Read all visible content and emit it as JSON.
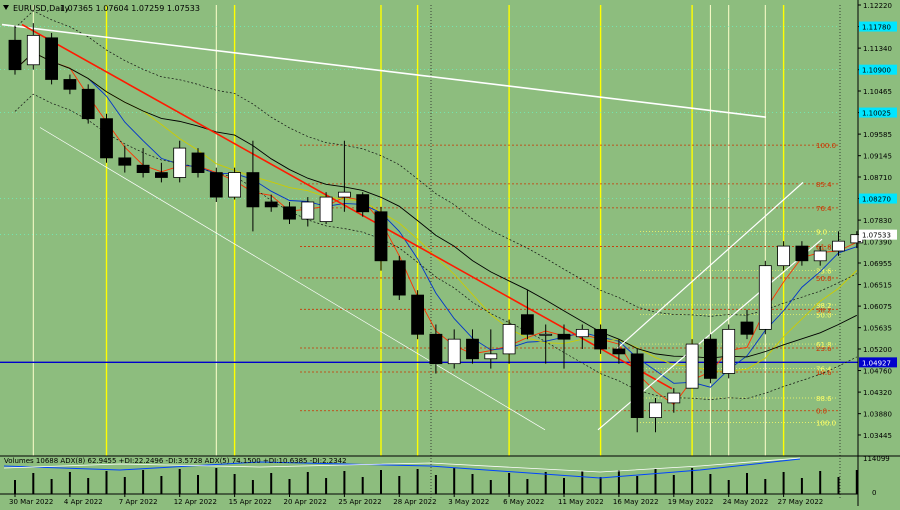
{
  "header": {
    "symbol_label": "EURUSD,Daily",
    "ohlc": "1.07365 1.07604 1.07259 1.07533"
  },
  "indicator_header": "Volumes 10688  ADX(8) 62.9455 +DI:22.2496 -DI:3.5728  ADX(5) 74.1500 +DI:10.6385 -DI:2.2342",
  "colors": {
    "background": "#8dbd7e",
    "bull_candle": "#ffffff",
    "bear_candle": "#000000",
    "trend_down": "#ff1a00",
    "channel": "#ffffff",
    "support": "#0000cc",
    "vertical_marker": "#ffff00",
    "fib": "#cc3300",
    "price_tag": "#00e5ff"
  },
  "chart_data": {
    "type": "candlestick",
    "title": "EURUSD,Daily",
    "ylim": [
      1.0322,
      1.1222
    ],
    "y_ticks": [
      "1.12220",
      "1.11780",
      "1.11340",
      "1.10900",
      "1.10465",
      "1.10025",
      "1.09585",
      "1.09145",
      "1.08710",
      "1.08270",
      "1.07830",
      "1.07390",
      "1.06955",
      "1.06515",
      "1.06075",
      "1.05635",
      "1.05200",
      "1.04760",
      "1.04320",
      "1.03880",
      "1.03445"
    ],
    "highlighted_prices": [
      {
        "label": "1.11780",
        "value": 1.1178
      },
      {
        "label": "1.10900",
        "value": 1.109
      },
      {
        "label": "1.10025",
        "value": 1.10025
      },
      {
        "label": "1.08270",
        "value": 1.0827
      },
      {
        "label": "1.07533",
        "value": 1.07533
      },
      {
        "label": "1.04927",
        "value": 1.04927
      }
    ],
    "x_labels": [
      {
        "label": "30 Mar 2022",
        "index": 0
      },
      {
        "label": "4 Apr 2022",
        "index": 3
      },
      {
        "label": "7 Apr 2022",
        "index": 6
      },
      {
        "label": "12 Apr 2022",
        "index": 9
      },
      {
        "label": "15 Apr 2022",
        "index": 12
      },
      {
        "label": "20 Apr 2022",
        "index": 15
      },
      {
        "label": "25 Apr 2022",
        "index": 18
      },
      {
        "label": "28 Apr 2022",
        "index": 21
      },
      {
        "label": "3 May 2022",
        "index": 24
      },
      {
        "label": "6 May 2022",
        "index": 27
      },
      {
        "label": "11 May 2022",
        "index": 30
      },
      {
        "label": "16 May 2022",
        "index": 33
      },
      {
        "label": "19 May 2022",
        "index": 36
      },
      {
        "label": "24 May 2022",
        "index": 39
      },
      {
        "label": "27 May 2022",
        "index": 42
      }
    ],
    "candles": [
      {
        "o": 1.115,
        "h": 1.118,
        "l": 1.108,
        "c": 1.109
      },
      {
        "o": 1.11,
        "h": 1.1185,
        "l": 1.109,
        "c": 1.116
      },
      {
        "o": 1.1155,
        "h": 1.1165,
        "l": 1.106,
        "c": 1.107
      },
      {
        "o": 1.107,
        "h": 1.108,
        "l": 1.104,
        "c": 1.105
      },
      {
        "o": 1.105,
        "h": 1.106,
        "l": 1.098,
        "c": 1.099
      },
      {
        "o": 1.099,
        "h": 1.1,
        "l": 1.09,
        "c": 1.091
      },
      {
        "o": 1.091,
        "h": 1.0935,
        "l": 1.088,
        "c": 1.0895
      },
      {
        "o": 1.0895,
        "h": 1.093,
        "l": 1.087,
        "c": 1.088
      },
      {
        "o": 1.088,
        "h": 1.09,
        "l": 1.086,
        "c": 1.087
      },
      {
        "o": 1.087,
        "h": 1.0945,
        "l": 1.086,
        "c": 1.093
      },
      {
        "o": 1.092,
        "h": 1.093,
        "l": 1.087,
        "c": 1.088
      },
      {
        "o": 1.088,
        "h": 1.089,
        "l": 1.082,
        "c": 1.083
      },
      {
        "o": 1.083,
        "h": 1.089,
        "l": 1.0825,
        "c": 1.088
      },
      {
        "o": 1.088,
        "h": 1.0945,
        "l": 1.076,
        "c": 1.081
      },
      {
        "o": 1.082,
        "h": 1.0835,
        "l": 1.08,
        "c": 1.081
      },
      {
        "o": 1.081,
        "h": 1.082,
        "l": 1.0775,
        "c": 1.0785
      },
      {
        "o": 1.0785,
        "h": 1.083,
        "l": 1.077,
        "c": 1.082
      },
      {
        "o": 1.078,
        "h": 1.084,
        "l": 1.0775,
        "c": 1.083
      },
      {
        "o": 1.083,
        "h": 1.0945,
        "l": 1.08,
        "c": 1.084
      },
      {
        "o": 1.0835,
        "h": 1.084,
        "l": 1.079,
        "c": 1.08
      },
      {
        "o": 1.08,
        "h": 1.081,
        "l": 1.068,
        "c": 1.07
      },
      {
        "o": 1.07,
        "h": 1.071,
        "l": 1.062,
        "c": 1.063
      },
      {
        "o": 1.063,
        "h": 1.064,
        "l": 1.054,
        "c": 1.055
      },
      {
        "o": 1.055,
        "h": 1.057,
        "l": 1.047,
        "c": 1.049
      },
      {
        "o": 1.049,
        "h": 1.056,
        "l": 1.048,
        "c": 1.054
      },
      {
        "o": 1.054,
        "h": 1.056,
        "l": 1.049,
        "c": 1.05
      },
      {
        "o": 1.05,
        "h": 1.056,
        "l": 1.048,
        "c": 1.051
      },
      {
        "o": 1.051,
        "h": 1.058,
        "l": 1.049,
        "c": 1.057
      },
      {
        "o": 1.059,
        "h": 1.064,
        "l": 1.054,
        "c": 1.055
      },
      {
        "o": 1.055,
        "h": 1.057,
        "l": 1.049,
        "c": 1.055
      },
      {
        "o": 1.055,
        "h": 1.057,
        "l": 1.048,
        "c": 1.054
      },
      {
        "o": 1.0545,
        "h": 1.057,
        "l": 1.052,
        "c": 1.056
      },
      {
        "o": 1.056,
        "h": 1.057,
        "l": 1.051,
        "c": 1.052
      },
      {
        "o": 1.052,
        "h": 1.054,
        "l": 1.049,
        "c": 1.051
      },
      {
        "o": 1.051,
        "h": 1.052,
        "l": 1.035,
        "c": 1.038
      },
      {
        "o": 1.038,
        "h": 1.042,
        "l": 1.035,
        "c": 1.041
      },
      {
        "o": 1.041,
        "h": 1.044,
        "l": 1.039,
        "c": 1.043
      },
      {
        "o": 1.044,
        "h": 1.054,
        "l": 1.044,
        "c": 1.053
      },
      {
        "o": 1.054,
        "h": 1.055,
        "l": 1.045,
        "c": 1.046
      },
      {
        "o": 1.047,
        "h": 1.057,
        "l": 1.046,
        "c": 1.056
      },
      {
        "o": 1.0575,
        "h": 1.06,
        "l": 1.054,
        "c": 1.055
      },
      {
        "o": 1.056,
        "h": 1.07,
        "l": 1.055,
        "c": 1.069
      },
      {
        "o": 1.069,
        "h": 1.074,
        "l": 1.068,
        "c": 1.073
      },
      {
        "o": 1.073,
        "h": 1.074,
        "l": 1.069,
        "c": 1.07
      },
      {
        "o": 1.07,
        "h": 1.073,
        "l": 1.069,
        "c": 1.072
      },
      {
        "o": 1.072,
        "h": 1.076,
        "l": 1.071,
        "c": 1.074
      },
      {
        "o": 1.07365,
        "h": 1.07604,
        "l": 1.07259,
        "c": 1.07533
      }
    ],
    "fib_levels": [
      {
        "label": "100.0",
        "value": 1.0936
      },
      {
        "label": "85.4",
        "value": 1.0857
      },
      {
        "label": "76.4",
        "value": 1.0808
      },
      {
        "label": "61.8",
        "value": 1.0729
      },
      {
        "label": "50.0",
        "value": 1.0665
      },
      {
        "label": "38.2",
        "value": 1.0601
      },
      {
        "label": "23.6",
        "value": 1.0522
      },
      {
        "label": "14.6",
        "value": 1.0473
      },
      {
        "label": "0.0",
        "value": 1.0394
      }
    ],
    "fib_levels_2": [
      {
        "label": "9.0",
        "value": 1.076
      },
      {
        "label": "23.6",
        "value": 1.068
      },
      {
        "label": "38.2",
        "value": 1.061
      },
      {
        "label": "50.0",
        "value": 1.059
      },
      {
        "label": "61.8",
        "value": 1.053
      },
      {
        "label": "76.4",
        "value": 1.048
      },
      {
        "label": "88.6",
        "value": 1.042
      },
      {
        "label": "100.0",
        "value": 1.037
      }
    ],
    "volume_ticks": [
      "114099",
      "0"
    ]
  }
}
